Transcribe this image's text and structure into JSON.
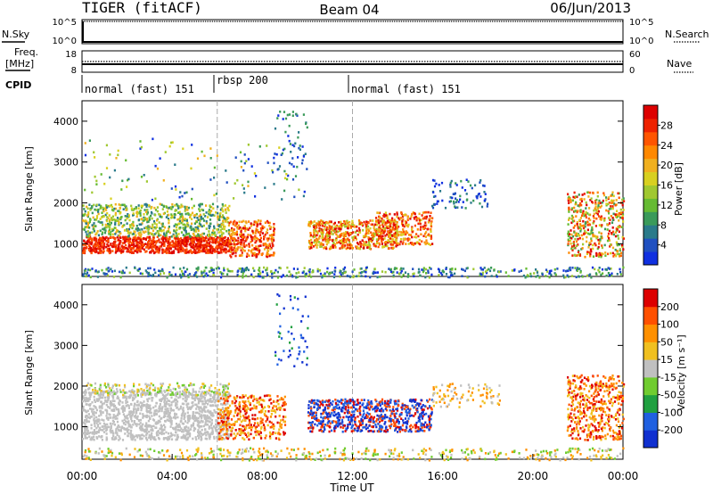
{
  "header": {
    "title_left": "TIGER (fitACF)",
    "title_center": "Beam 04",
    "title_right": "06/Jun/2013"
  },
  "params": {
    "nsky_label": "N.Sky",
    "nsky_ticks": [
      "10^5",
      "10^0"
    ],
    "nsearch_label": "N.Search",
    "nsearch_ticks": [
      "10^5",
      "10^0"
    ],
    "freq_label_1": "Freq.",
    "freq_label_2": "[MHz]",
    "freq_ticks": [
      "18",
      "8"
    ],
    "nave_label": "Nave",
    "nave_ticks": [
      "60",
      "0"
    ],
    "cpid_label": "CPID",
    "cpid_segments": [
      {
        "name": "normal (fast) 151",
        "start_h": 0,
        "end_h": 6
      },
      {
        "name": "rbsp 200",
        "start_h": 6,
        "end_h": 12
      },
      {
        "name": "normal (fast) 151",
        "start_h": 12,
        "end_h": 24
      }
    ]
  },
  "chart_data": [
    {
      "type": "heatmap",
      "name": "power",
      "ylabel": "Slant Range [km]",
      "yticks": [
        1000,
        2000,
        3000,
        4000
      ],
      "ylim": [
        200,
        4500
      ],
      "xlim_hours": [
        0,
        24
      ],
      "colorbar_label": "Power [dB]",
      "colorbar_ticks": [
        4,
        8,
        12,
        16,
        20,
        24,
        28
      ],
      "colorbar_colors": [
        "#1030e0",
        "#2050c0",
        "#2a7a8a",
        "#3a9a5a",
        "#66bb33",
        "#a0c830",
        "#d8d020",
        "#f0b020",
        "#ff8800",
        "#ff5500",
        "#ee2200",
        "#dd0000"
      ]
    },
    {
      "type": "heatmap",
      "name": "velocity",
      "ylabel": "Slant Range [km]",
      "yticks": [
        1000,
        2000,
        3000,
        4000
      ],
      "ylim": [
        200,
        4500
      ],
      "xlim_hours": [
        0,
        24
      ],
      "xticks": [
        "00:00",
        "04:00",
        "08:00",
        "12:00",
        "16:00",
        "20:00",
        "00:00"
      ],
      "xlabel": "Time UT",
      "colorbar_label": "Velocity [m s⁻¹]",
      "colorbar_ticks": [
        200,
        100,
        50,
        15,
        -15,
        -50,
        -100,
        -200
      ],
      "colorbar_colors": [
        "#1030d0",
        "#2060e0",
        "#20a040",
        "#70cc30",
        "#c0c0c0",
        "#f0c020",
        "#ff9000",
        "#ff5000",
        "#dd0000"
      ]
    }
  ]
}
